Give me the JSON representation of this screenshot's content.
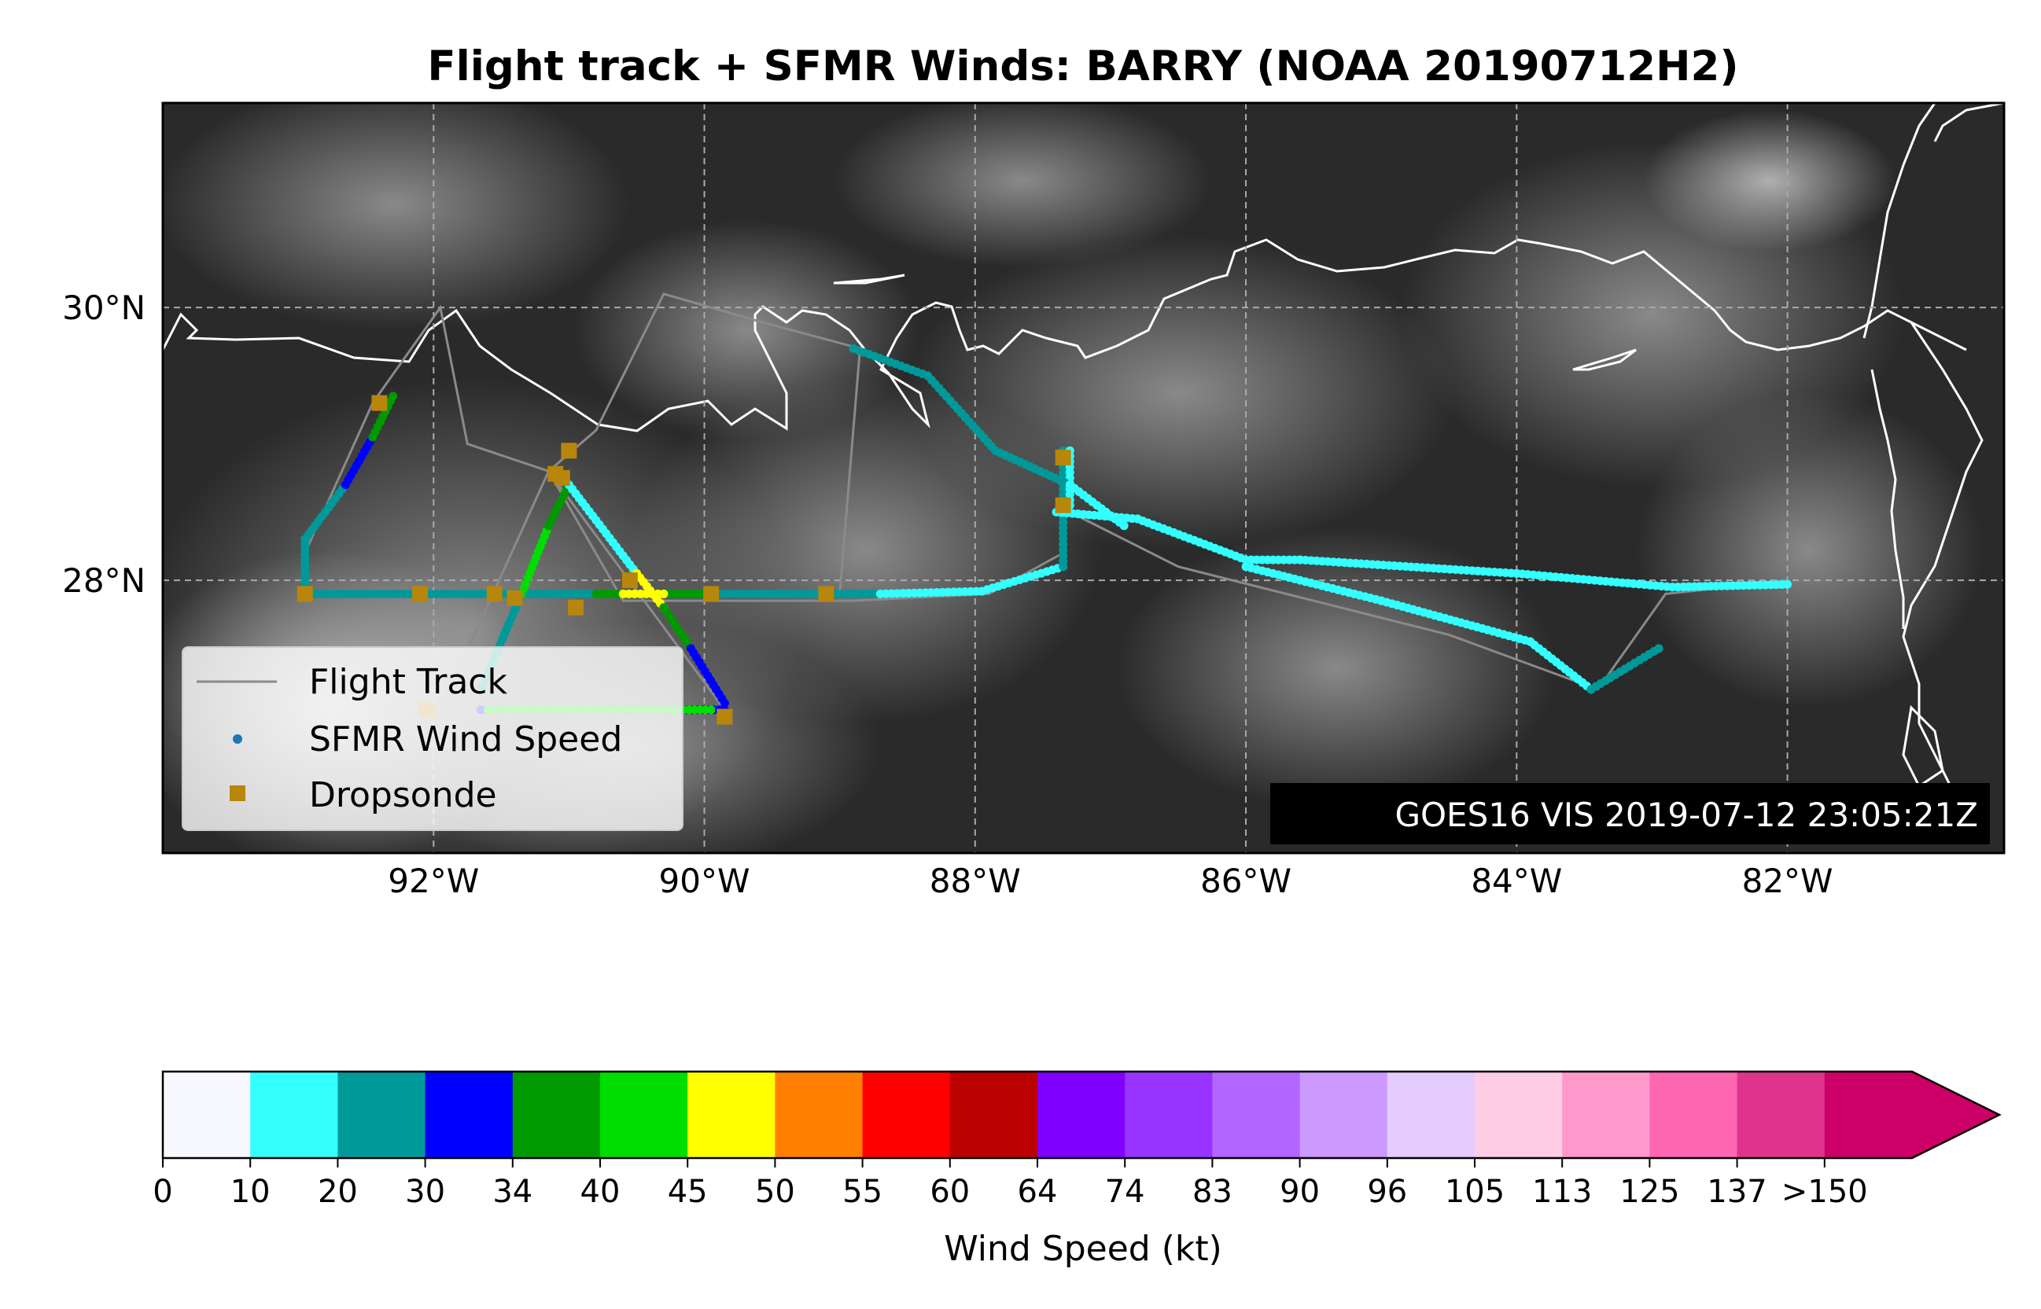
{
  "title": "Flight track + SFMR Winds: BARRY (NOAA 20190712H2)",
  "map": {
    "lon_range": [
      -94.0,
      -80.4
    ],
    "lat_range": [
      26.0,
      31.5
    ],
    "lat_ticks": [
      {
        "value": 30,
        "label": "30°N"
      },
      {
        "value": 28,
        "label": "28°N"
      }
    ],
    "lon_ticks": [
      {
        "value": -92,
        "label": "92°W"
      },
      {
        "value": -90,
        "label": "90°W"
      },
      {
        "value": -88,
        "label": "88°W"
      },
      {
        "value": -86,
        "label": "86°W"
      },
      {
        "value": -84,
        "label": "84°W"
      },
      {
        "value": -82,
        "label": "82°W"
      }
    ],
    "grid": true,
    "background": "GOES16 visible satellite imagery (dark cloud field)"
  },
  "satellite_label": "GOES16 VIS 2019-07-12 23:05:21Z",
  "legend": {
    "placement": "lower-left",
    "items": [
      {
        "key": "track",
        "label": "Flight Track"
      },
      {
        "key": "sfmr",
        "label": "SFMR Wind Speed"
      },
      {
        "key": "drop",
        "label": "Dropsonde"
      }
    ],
    "colors": {
      "track": "#8a8a8a",
      "sfmr": "#1f77b4",
      "drop": "#b8860b"
    }
  },
  "colorbar": {
    "label": "Wind Speed (kt)",
    "ticks": [
      "0",
      "10",
      "20",
      "30",
      "34",
      "40",
      "45",
      "50",
      "55",
      "60",
      "64",
      "74",
      "83",
      "90",
      "96",
      "105",
      "113",
      "125",
      "137",
      ">150"
    ],
    "colors": [
      "#f8f8ff",
      "#33ffff",
      "#009999",
      "#0000ff",
      "#009900",
      "#00dd00",
      "#ffff00",
      "#ff7f00",
      "#ff0000",
      "#bb0000",
      "#7f00ff",
      "#9933ff",
      "#b266ff",
      "#cc99ff",
      "#e5ccff",
      "#ffcce5",
      "#ff99cc",
      "#ff66b2",
      "#e0338c",
      "#cc0066"
    ],
    "extend_color": "#cc0066"
  },
  "chart_data": {
    "type": "scatter",
    "flight_track": [
      [
        -82.0,
        28.0
      ],
      [
        -82.9,
        27.9
      ],
      [
        -83.4,
        27.2
      ],
      [
        -84.5,
        27.6
      ],
      [
        -86.5,
        28.1
      ],
      [
        -87.3,
        28.5
      ],
      [
        -87.35,
        28.9
      ],
      [
        -87.35,
        28.2
      ],
      [
        -87.9,
        27.9
      ],
      [
        -88.9,
        27.85
      ],
      [
        -90.6,
        27.85
      ],
      [
        -91.15,
        28.8
      ],
      [
        -89.85,
        27.05
      ],
      [
        -91.95,
        27.05
      ],
      [
        -91.15,
        28.8
      ],
      [
        -91.75,
        29.0
      ],
      [
        -91.95,
        30.0
      ],
      [
        -92.45,
        29.3
      ],
      [
        -92.95,
        28.2
      ],
      [
        -92.95,
        27.9
      ],
      [
        -89.0,
        27.9
      ],
      [
        -88.85,
        29.7
      ],
      [
        -89.6,
        29.9
      ],
      [
        -90.3,
        30.1
      ],
      [
        -90.8,
        29.1
      ],
      [
        -91.15,
        28.8
      ]
    ],
    "sfmr_segments": [
      {
        "from": [
          -92.95,
          27.9
        ],
        "to": [
          -88.7,
          27.9
        ],
        "wind_kt": 25
      },
      {
        "from": [
          -90.8,
          27.9
        ],
        "to": [
          -90.0,
          27.9
        ],
        "wind_kt": 38
      },
      {
        "from": [
          -90.6,
          27.9
        ],
        "to": [
          -90.3,
          27.9
        ],
        "wind_kt": 47
      },
      {
        "from": [
          -92.95,
          27.95
        ],
        "to": [
          -92.95,
          28.3
        ],
        "wind_kt": 25
      },
      {
        "from": [
          -92.95,
          28.3
        ],
        "to": [
          -92.65,
          28.7
        ],
        "wind_kt": 25
      },
      {
        "from": [
          -92.65,
          28.7
        ],
        "to": [
          -92.45,
          29.05
        ],
        "wind_kt": 32
      },
      {
        "from": [
          -92.45,
          29.05
        ],
        "to": [
          -92.3,
          29.35
        ],
        "wind_kt": 38
      },
      {
        "from": [
          -91.65,
          27.2
        ],
        "to": [
          -91.35,
          27.9
        ],
        "wind_kt": 22
      },
      {
        "from": [
          -91.35,
          27.9
        ],
        "to": [
          -91.15,
          28.4
        ],
        "wind_kt": 42
      },
      {
        "from": [
          -91.15,
          28.4
        ],
        "to": [
          -91.0,
          28.7
        ],
        "wind_kt": 38
      },
      {
        "from": [
          -91.0,
          28.7
        ],
        "to": [
          -90.5,
          28.05
        ],
        "wind_kt": 13
      },
      {
        "from": [
          -90.5,
          28.05
        ],
        "to": [
          -90.3,
          27.8
        ],
        "wind_kt": 47
      },
      {
        "from": [
          -90.3,
          27.8
        ],
        "to": [
          -90.1,
          27.5
        ],
        "wind_kt": 38
      },
      {
        "from": [
          -90.1,
          27.5
        ],
        "to": [
          -89.85,
          27.1
        ],
        "wind_kt": 32
      },
      {
        "from": [
          -89.85,
          27.05
        ],
        "to": [
          -91.65,
          27.05
        ],
        "wind_kt": 32
      },
      {
        "from": [
          -91.6,
          27.05
        ],
        "to": [
          -89.95,
          27.05
        ],
        "wind_kt": 42
      },
      {
        "from": [
          -88.7,
          27.9
        ],
        "to": [
          -87.95,
          27.92
        ],
        "wind_kt": 15
      },
      {
        "from": [
          -87.95,
          27.92
        ],
        "to": [
          -87.35,
          28.1
        ],
        "wind_kt": 15
      },
      {
        "from": [
          -87.35,
          28.1
        ],
        "to": [
          -87.35,
          28.95
        ],
        "wind_kt": 22
      },
      {
        "from": [
          -87.3,
          28.95
        ],
        "to": [
          -87.3,
          28.55
        ],
        "wind_kt": 15
      },
      {
        "from": [
          -88.9,
          29.7
        ],
        "to": [
          -88.35,
          29.5
        ],
        "wind_kt": 22
      },
      {
        "from": [
          -88.35,
          29.5
        ],
        "to": [
          -87.85,
          28.95
        ],
        "wind_kt": 22
      },
      {
        "from": [
          -87.85,
          28.95
        ],
        "to": [
          -87.3,
          28.7
        ],
        "wind_kt": 22
      },
      {
        "from": [
          -87.3,
          28.7
        ],
        "to": [
          -86.9,
          28.4
        ],
        "wind_kt": 18
      },
      {
        "from": [
          -87.4,
          28.5
        ],
        "to": [
          -86.8,
          28.45
        ],
        "wind_kt": 15
      },
      {
        "from": [
          -86.8,
          28.45
        ],
        "to": [
          -86.0,
          28.15
        ],
        "wind_kt": 15
      },
      {
        "from": [
          -86.0,
          28.15
        ],
        "to": [
          -85.6,
          28.15
        ],
        "wind_kt": 15
      },
      {
        "from": [
          -85.6,
          28.15
        ],
        "to": [
          -84.0,
          28.05
        ],
        "wind_kt": 14
      },
      {
        "from": [
          -84.0,
          28.05
        ],
        "to": [
          -82.85,
          27.95
        ],
        "wind_kt": 13
      },
      {
        "from": [
          -82.85,
          27.95
        ],
        "to": [
          -82.0,
          27.97
        ],
        "wind_kt": 14
      },
      {
        "from": [
          -86.0,
          28.1
        ],
        "to": [
          -85.0,
          27.85
        ],
        "wind_kt": 18
      },
      {
        "from": [
          -85.0,
          27.85
        ],
        "to": [
          -83.9,
          27.55
        ],
        "wind_kt": 18
      },
      {
        "from": [
          -83.9,
          27.55
        ],
        "to": [
          -83.45,
          27.2
        ],
        "wind_kt": 18
      },
      {
        "from": [
          -83.45,
          27.2
        ],
        "to": [
          -82.95,
          27.5
        ],
        "wind_kt": 22
      }
    ],
    "dropsondes": [
      [
        -92.4,
        29.3
      ],
      [
        -91.0,
        28.95
      ],
      [
        -91.1,
        28.78
      ],
      [
        -91.05,
        28.75
      ],
      [
        -87.35,
        28.9
      ],
      [
        -87.35,
        28.55
      ],
      [
        -92.95,
        27.9
      ],
      [
        -92.1,
        27.9
      ],
      [
        -91.55,
        27.9
      ],
      [
        -91.4,
        27.87
      ],
      [
        -90.95,
        27.8
      ],
      [
        -90.55,
        28.0
      ],
      [
        -89.95,
        27.9
      ],
      [
        -89.1,
        27.9
      ],
      [
        -92.05,
        27.05
      ],
      [
        -89.85,
        27.0
      ]
    ]
  }
}
